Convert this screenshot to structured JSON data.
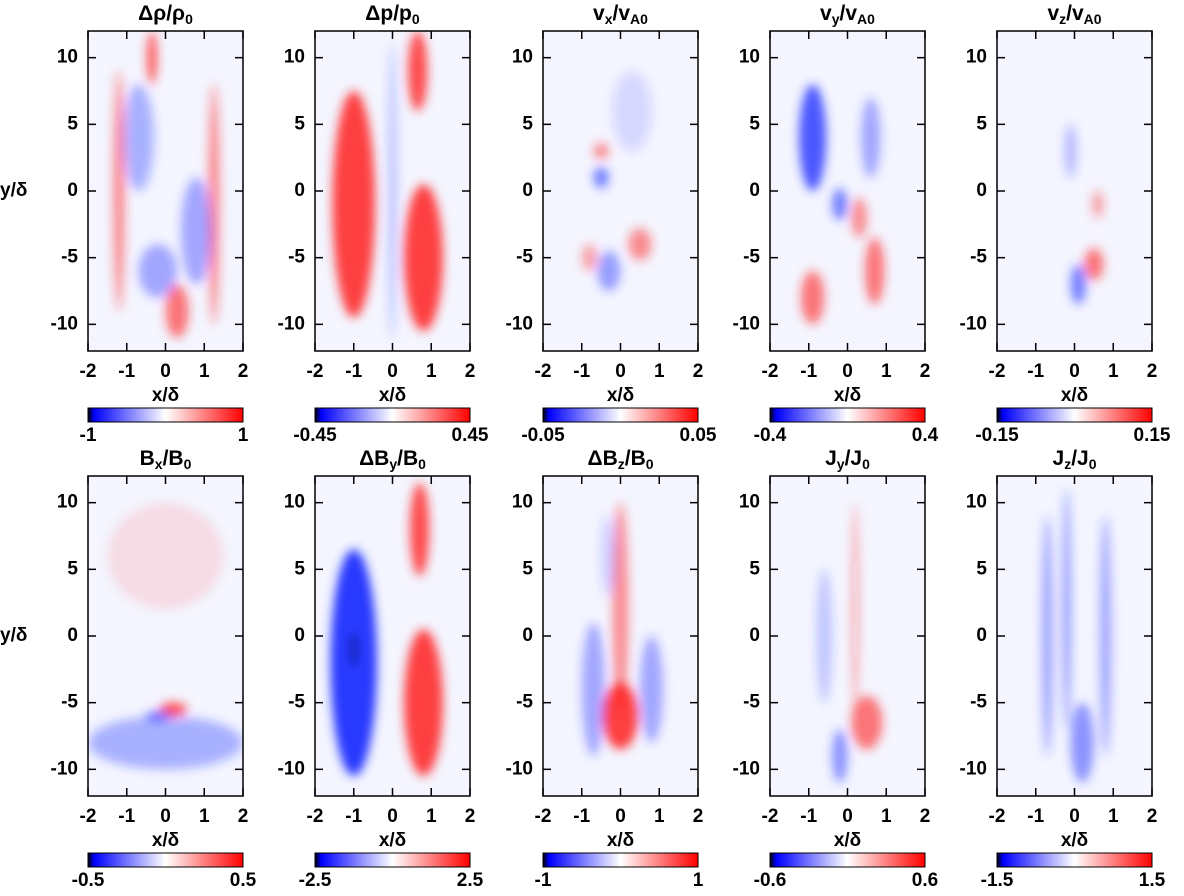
{
  "chart_data": [
    {
      "type": "heatmap",
      "title": [
        "Δρ/ρ",
        "0"
      ],
      "xlabel": "x/δ",
      "ylabel": "y/δ",
      "xlim": [
        -2,
        2
      ],
      "ylim": [
        -12,
        12
      ],
      "xticks": [
        -2,
        -1,
        0,
        1,
        2
      ],
      "yticks": [
        -10,
        -5,
        0,
        5,
        10
      ],
      "clim": [
        -1,
        1
      ]
    },
    {
      "type": "heatmap",
      "title": [
        "Δp/p",
        "0"
      ],
      "xlabel": "x/δ",
      "xlim": [
        -2,
        2
      ],
      "ylim": [
        -12,
        12
      ],
      "xticks": [
        -2,
        -1,
        0,
        1,
        2
      ],
      "yticks": [
        -10,
        -5,
        0,
        5,
        10
      ],
      "clim": [
        -0.45,
        0.45
      ]
    },
    {
      "type": "heatmap",
      "title": [
        "v",
        "x",
        "/v",
        "A0"
      ],
      "xlabel": "x/δ",
      "xlim": [
        -2,
        2
      ],
      "ylim": [
        -12,
        12
      ],
      "xticks": [
        -2,
        -1,
        0,
        1,
        2
      ],
      "yticks": [
        -10,
        -5,
        0,
        5,
        10
      ],
      "clim": [
        -0.05,
        0.05
      ]
    },
    {
      "type": "heatmap",
      "title": [
        "v",
        "y",
        "/v",
        "A0"
      ],
      "xlabel": "x/δ",
      "xlim": [
        -2,
        2
      ],
      "ylim": [
        -12,
        12
      ],
      "xticks": [
        -2,
        -1,
        0,
        1,
        2
      ],
      "yticks": [
        -10,
        -5,
        0,
        5,
        10
      ],
      "clim": [
        -0.4,
        0.4
      ]
    },
    {
      "type": "heatmap",
      "title": [
        "v",
        "z",
        "/v",
        "A0"
      ],
      "xlabel": "x/δ",
      "xlim": [
        -2,
        2
      ],
      "ylim": [
        -12,
        12
      ],
      "xticks": [
        -2,
        -1,
        0,
        1,
        2
      ],
      "yticks": [
        -10,
        -5,
        0,
        5,
        10
      ],
      "clim": [
        -0.15,
        0.15
      ]
    },
    {
      "type": "heatmap",
      "title": [
        "B",
        "x",
        "/B",
        "0"
      ],
      "xlabel": "x/δ",
      "ylabel": "y/δ",
      "xlim": [
        -2,
        2
      ],
      "ylim": [
        -12,
        12
      ],
      "xticks": [
        -2,
        -1,
        0,
        1,
        2
      ],
      "yticks": [
        -10,
        -5,
        0,
        5,
        10
      ],
      "clim": [
        -0.5,
        0.5
      ]
    },
    {
      "type": "heatmap",
      "title": [
        "ΔB",
        "y",
        "/B",
        "0"
      ],
      "xlabel": "x/δ",
      "xlim": [
        -2,
        2
      ],
      "ylim": [
        -12,
        12
      ],
      "xticks": [
        -2,
        -1,
        0,
        1,
        2
      ],
      "yticks": [
        -10,
        -5,
        0,
        5,
        10
      ],
      "clim": [
        -2.5,
        2.5
      ]
    },
    {
      "type": "heatmap",
      "title": [
        "ΔB",
        "z",
        "/B",
        "0"
      ],
      "xlabel": "x/δ",
      "xlim": [
        -2,
        2
      ],
      "ylim": [
        -12,
        12
      ],
      "xticks": [
        -2,
        -1,
        0,
        1,
        2
      ],
      "yticks": [
        -10,
        -5,
        0,
        5,
        10
      ],
      "clim": [
        -1,
        1
      ]
    },
    {
      "type": "heatmap",
      "title": [
        "J",
        "y",
        "/J",
        "0"
      ],
      "xlabel": "x/δ",
      "xlim": [
        -2,
        2
      ],
      "ylim": [
        -12,
        12
      ],
      "xticks": [
        -2,
        -1,
        0,
        1,
        2
      ],
      "yticks": [
        -10,
        -5,
        0,
        5,
        10
      ],
      "clim": [
        -0.6,
        0.6
      ]
    },
    {
      "type": "heatmap",
      "title": [
        "J",
        "z",
        "/J",
        "0"
      ],
      "xlabel": "x/δ",
      "xlim": [
        -2,
        2
      ],
      "ylim": [
        -12,
        12
      ],
      "xticks": [
        -2,
        -1,
        0,
        1,
        2
      ],
      "yticks": [
        -10,
        -5,
        0,
        5,
        10
      ],
      "clim": [
        -1.5,
        1.5
      ]
    }
  ]
}
